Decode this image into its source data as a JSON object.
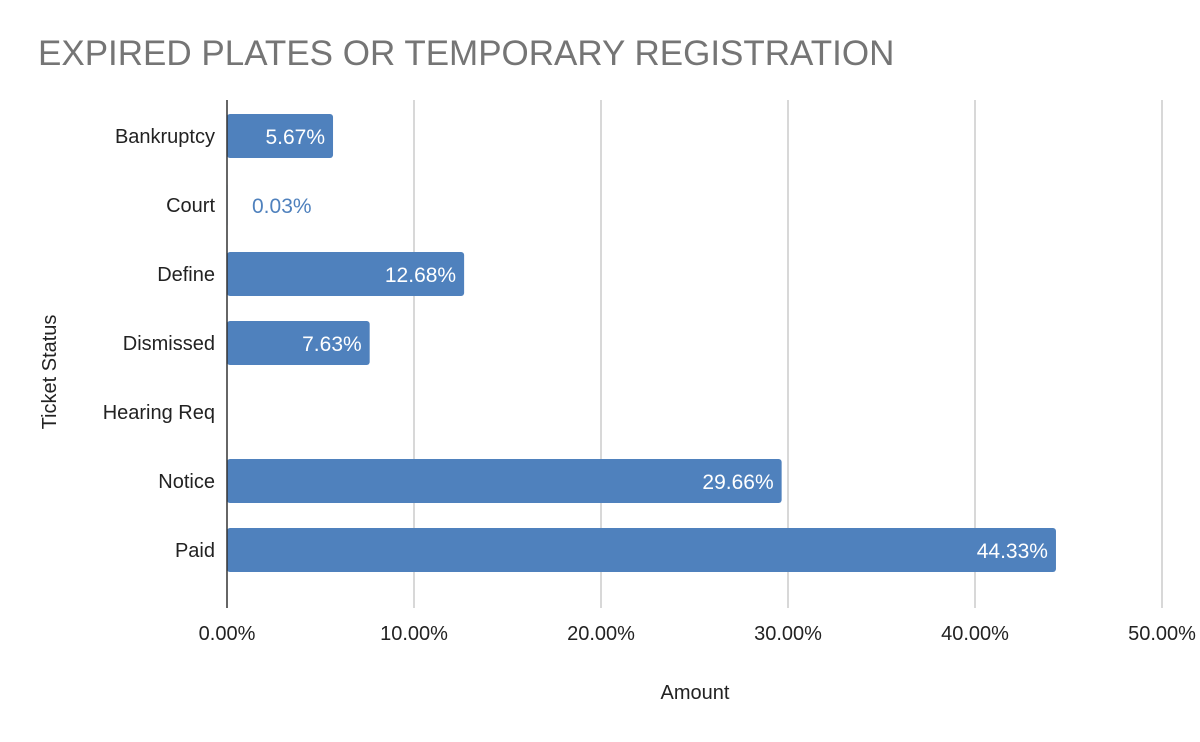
{
  "chart_data": {
    "type": "bar",
    "orientation": "horizontal",
    "title": "EXPIRED PLATES OR TEMPORARY REGISTRATION",
    "xlabel": "Amount",
    "ylabel": "Ticket Status",
    "categories": [
      "Bankruptcy",
      "Court",
      "Define",
      "Dismissed",
      "Hearing Req",
      "Notice",
      "Paid"
    ],
    "values": [
      5.67,
      0.03,
      12.68,
      7.63,
      0,
      29.66,
      44.33
    ],
    "data_labels": [
      "5.67%",
      "0.03%",
      "12.68%",
      "7.63%",
      "",
      "29.66%",
      "44.33%"
    ],
    "xlim": [
      0,
      50
    ],
    "x_ticks": [
      0,
      10,
      20,
      30,
      40,
      50
    ],
    "x_tick_labels": [
      "0.00%",
      "10.00%",
      "20.00%",
      "30.00%",
      "40.00%",
      "50.00%"
    ],
    "grid": "vertical",
    "legend": "none",
    "colors": {
      "bar": "#4f81bd",
      "label_inside": "#ffffff",
      "label_outside": "#4f81bd",
      "title": "#757575",
      "text": "#222222",
      "grid": "#cccccc",
      "axis": "#333333"
    }
  }
}
